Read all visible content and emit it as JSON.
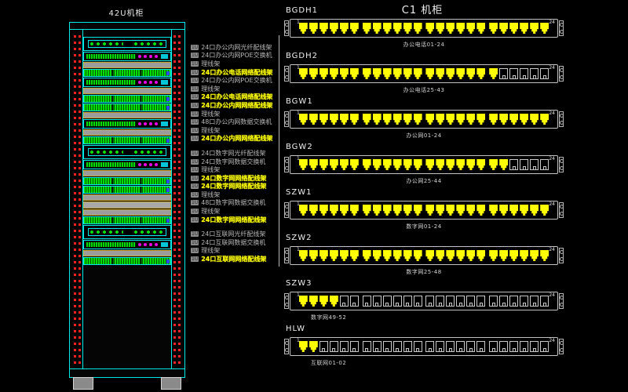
{
  "left": {
    "rack_title": "42U机柜",
    "rack_units": [
      {
        "type": "fiber"
      },
      {
        "type": "switch"
      },
      {
        "type": "cable-manager"
      },
      {
        "type": "patch"
      },
      {
        "type": "switch"
      },
      {
        "type": "cable-manager"
      },
      {
        "type": "patch"
      },
      {
        "type": "patch"
      },
      {
        "type": "cable-manager"
      },
      {
        "type": "switch"
      },
      {
        "type": "cable-manager"
      },
      {
        "type": "patch"
      },
      {
        "type": "fiber"
      },
      {
        "type": "switch"
      },
      {
        "type": "cable-manager"
      },
      {
        "type": "patch"
      },
      {
        "type": "patch"
      },
      {
        "type": "cable-manager"
      },
      {
        "type": "blank"
      },
      {
        "type": "cable-manager"
      },
      {
        "type": "patch"
      },
      {
        "type": "fiber"
      },
      {
        "type": "switch"
      },
      {
        "type": "cable-manager"
      },
      {
        "type": "patch"
      }
    ],
    "unit_labels": [
      {
        "prefix": "1U",
        "text": "24口办公内网光纤配线架",
        "highlight": false,
        "gap": false
      },
      {
        "prefix": "1U",
        "text": "24口办公内网POE交换机",
        "highlight": false,
        "gap": false
      },
      {
        "prefix": "1U",
        "text": "理线架",
        "highlight": false,
        "gap": false
      },
      {
        "prefix": "1U",
        "text": "24口办公电话网络配线架",
        "highlight": true,
        "gap": false
      },
      {
        "prefix": "1U",
        "text": "24口办公内网POE交换机",
        "highlight": false,
        "gap": false
      },
      {
        "prefix": "1U",
        "text": "理线架",
        "highlight": false,
        "gap": false
      },
      {
        "prefix": "1U",
        "text": "24口办公电话网络配线架",
        "highlight": true,
        "gap": false
      },
      {
        "prefix": "1U",
        "text": "24口办公内网网络配线架",
        "highlight": true,
        "gap": false
      },
      {
        "prefix": "1U",
        "text": "理线架",
        "highlight": false,
        "gap": false
      },
      {
        "prefix": "1U",
        "text": "48口办公内网数据交换机",
        "highlight": false,
        "gap": false
      },
      {
        "prefix": "1U",
        "text": "理线架",
        "highlight": false,
        "gap": false
      },
      {
        "prefix": "1U",
        "text": "24口办公内网网络配线架",
        "highlight": true,
        "gap": false
      },
      {
        "prefix": "1U",
        "text": "24口数字网光纤配线架",
        "highlight": false,
        "gap": true
      },
      {
        "prefix": "1U",
        "text": "24口数字网数据交换机",
        "highlight": false,
        "gap": false
      },
      {
        "prefix": "1U",
        "text": "理线架",
        "highlight": false,
        "gap": false
      },
      {
        "prefix": "1U",
        "text": "24口数字网网络配线架",
        "highlight": true,
        "gap": false
      },
      {
        "prefix": "1U",
        "text": "24口数字网网络配线架",
        "highlight": true,
        "gap": false
      },
      {
        "prefix": "1U",
        "text": "理线架",
        "highlight": false,
        "gap": false
      },
      {
        "prefix": "1U",
        "text": "48口数字网数据交换机",
        "highlight": false,
        "gap": false
      },
      {
        "prefix": "1U",
        "text": "理线架",
        "highlight": false,
        "gap": false
      },
      {
        "prefix": "1U",
        "text": "24口数字网网络配线架",
        "highlight": true,
        "gap": false
      },
      {
        "prefix": "1U",
        "text": "24口互联网光纤配线架",
        "highlight": false,
        "gap": true
      },
      {
        "prefix": "1U",
        "text": "24口互联网数据交换机",
        "highlight": false,
        "gap": false
      },
      {
        "prefix": "1U",
        "text": "理线架",
        "highlight": false,
        "gap": false
      },
      {
        "prefix": "1U",
        "text": "24口互联网网络配线架",
        "highlight": true,
        "gap": false
      }
    ]
  },
  "right": {
    "title": "C1 机柜",
    "panels": [
      {
        "name": "BGDH1",
        "caption": "办公电话01-24",
        "caption_align": "center",
        "groups": [
          6,
          6,
          6,
          6
        ],
        "ports_active": 24,
        "first_port": "1",
        "last_port": "24"
      },
      {
        "name": "BGDH2",
        "caption": "办公电话25-43",
        "caption_align": "center",
        "groups": [
          6,
          6,
          6,
          6
        ],
        "ports_active": 19,
        "first_port": "1",
        "last_port": "24"
      },
      {
        "name": "BGW1",
        "caption": "办公网01-24",
        "caption_align": "center",
        "groups": [
          6,
          6,
          6,
          6
        ],
        "ports_active": 24,
        "first_port": "1",
        "last_port": "24"
      },
      {
        "name": "BGW2",
        "caption": "办公网25-44",
        "caption_align": "center",
        "groups": [
          6,
          6,
          6,
          6
        ],
        "ports_active": 20,
        "first_port": "1",
        "last_port": "24"
      },
      {
        "name": "SZW1",
        "caption": "数字网01-24",
        "caption_align": "center",
        "groups": [
          6,
          6,
          6,
          6
        ],
        "ports_active": 24,
        "first_port": "1",
        "last_port": "24"
      },
      {
        "name": "SZW2",
        "caption": "数字网25-48",
        "caption_align": "center",
        "groups": [
          6,
          6,
          6,
          6
        ],
        "ports_active": 24,
        "first_port": "1",
        "last_port": "24"
      },
      {
        "name": "SZW3",
        "caption": "数字网49-52",
        "caption_align": "left",
        "groups": [
          6,
          6,
          6,
          6
        ],
        "ports_active": 4,
        "first_port": "1",
        "last_port": "24"
      },
      {
        "name": "HLW",
        "caption": "互联网01-02",
        "caption_align": "left",
        "groups": [
          6,
          6,
          6,
          6
        ],
        "ports_active": 2,
        "first_port": "1",
        "last_port": "24"
      }
    ]
  },
  "colors": {
    "background": "#000000",
    "rack_frame": "#00e8e8",
    "port_green": "#00dd00",
    "led_magenta": "#ee00ee",
    "hole_red": "#ff2020",
    "active_port_yellow": "#ffff00",
    "highlight_text_yellow": "#ffff00",
    "cable_manager_gray": "#9c9c9c",
    "panel_frame_gray": "#c2c2c2"
  }
}
